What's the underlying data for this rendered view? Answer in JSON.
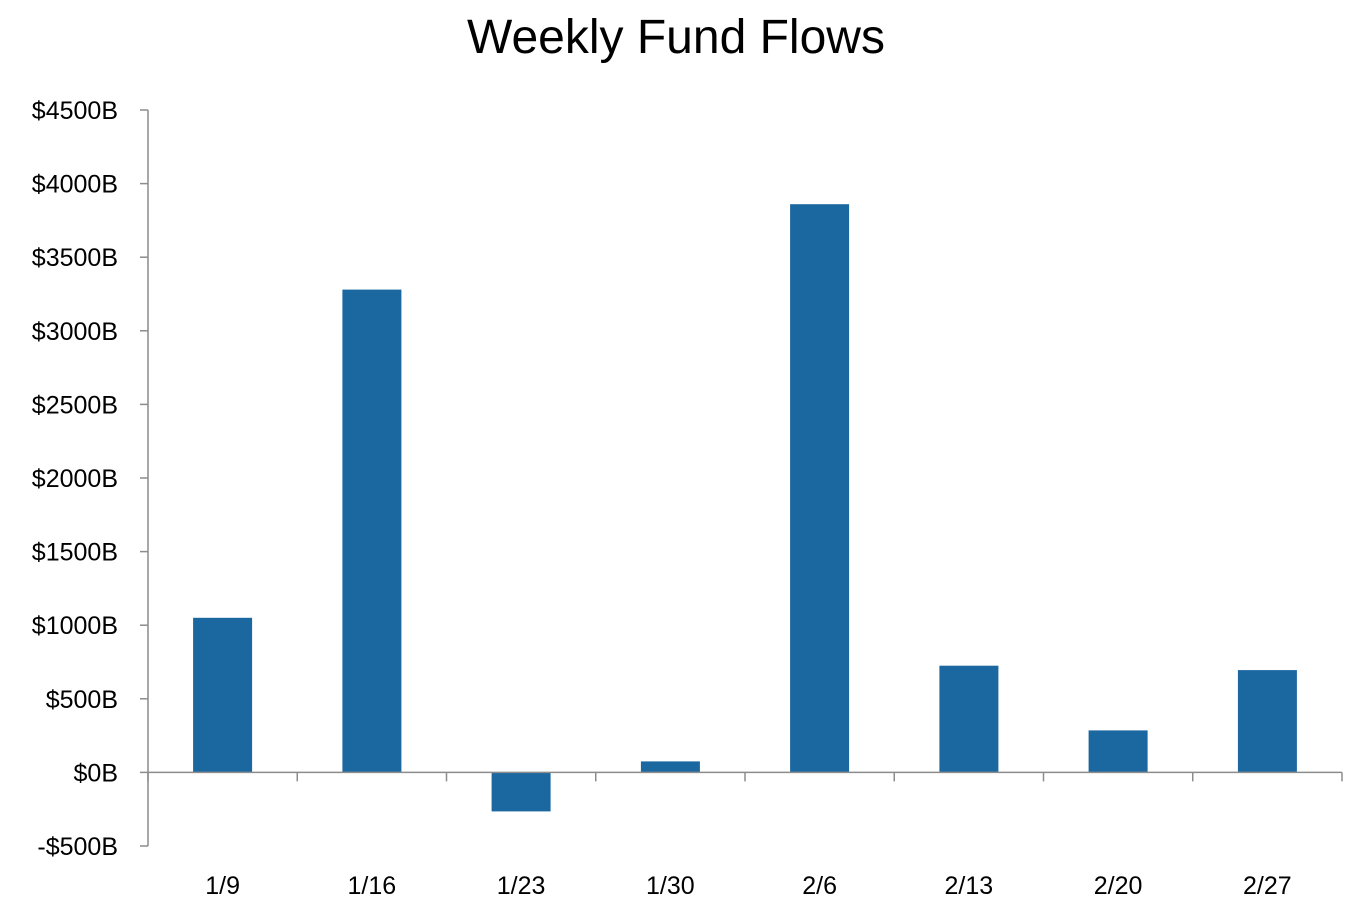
{
  "chart_data": {
    "type": "bar",
    "title": "Weekly Fund Flows",
    "xlabel": "",
    "ylabel": "",
    "categories": [
      "1/9",
      "1/16",
      "1/23",
      "1/30",
      "2/6",
      "2/13",
      "2/20",
      "2/27"
    ],
    "values": [
      1050,
      3280,
      -265,
      75,
      3860,
      725,
      285,
      695
    ],
    "ylim": [
      -500,
      4500
    ],
    "yticks": [
      -500,
      0,
      500,
      1000,
      1500,
      2000,
      2500,
      3000,
      3500,
      4000,
      4500
    ],
    "ytick_labels": [
      "-$500B",
      "$0B",
      "$500B",
      "$1000B",
      "$1500B",
      "$2000B",
      "$2500B",
      "$3000B",
      "$3500B",
      "$4000B",
      "$4500B"
    ],
    "bar_color": "#1b67a0",
    "axis_color": "#8c8c8c",
    "grid": false,
    "legend": "none"
  }
}
